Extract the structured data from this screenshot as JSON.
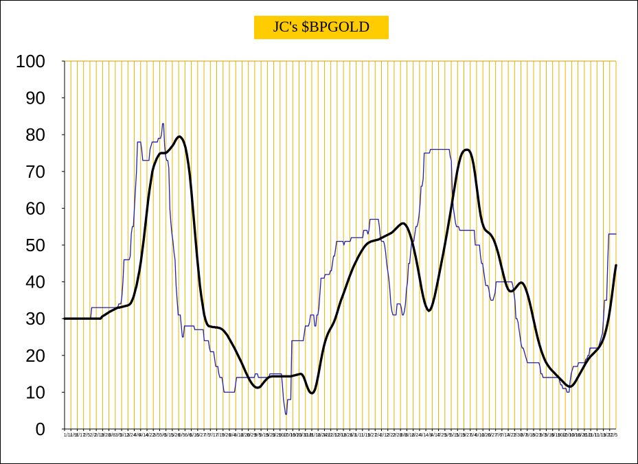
{
  "chart_data": {
    "type": "line",
    "title": "JC's $BPGOLD",
    "xlabel": "",
    "ylabel": "",
    "ylim": [
      0,
      100
    ],
    "yticks": [
      0,
      10,
      20,
      30,
      40,
      50,
      60,
      70,
      80,
      90,
      100
    ],
    "grid": "vertical",
    "legend": "none",
    "colors": {
      "plot_background": "#FFFFFF",
      "grid": "#E8B400",
      "axis": "#C8A000",
      "raw_series": "#1F1FB0",
      "smoothed_series": "#000000",
      "title_background": "#FFCC00"
    },
    "x_tick_labels": [
      "1/1/",
      "1/9/",
      "1/17",
      "2/5",
      "2/2",
      "2/19",
      "2/28",
      "3/8",
      "3/5",
      "3/13",
      "2/24",
      "4/6",
      "4/14",
      "4/22",
      "3/5",
      "5/6",
      "5/15",
      "5/26",
      "6/5",
      "6/6",
      "6/15",
      "6/27",
      "7/5",
      "7/17",
      "7/19",
      "7/26",
      "8/4",
      "8/12",
      "8/20",
      "8/29",
      "9/5",
      "9/15",
      "9/23",
      "9/29",
      "10/7",
      "10/19",
      "10/23",
      "10/31",
      "11/8",
      "11/18",
      "11/24",
      "12/1",
      "12/12",
      "12/18",
      "12/26",
      "1/3",
      "1/11",
      "1/19",
      "1/27",
      "2/4",
      "2/12",
      "2/22",
      "2/28",
      "3/8",
      "3/18",
      "2/24",
      "4/1",
      "4/9",
      "4/17",
      "4/25",
      "5/5",
      "5/11",
      "5/19",
      "5/27",
      "6/4",
      "6/12",
      "6/20",
      "6/27",
      "7/6",
      "7/14",
      "7/22",
      "7/30",
      "8/7",
      "8/15",
      "8/23",
      "9/3",
      "9/16",
      "9/19",
      "10/2",
      "10/10",
      "10/18",
      "10/26",
      "11/3",
      "11/11",
      "11/19",
      "11/27",
      "12/5"
    ],
    "series": [
      {
        "role": "raw",
        "values": [
          30,
          30,
          30,
          30,
          30,
          30,
          30,
          30,
          30,
          30,
          30,
          30,
          30,
          30,
          30,
          30,
          30,
          30,
          30,
          30,
          30,
          30,
          30,
          30,
          30,
          30,
          33,
          33,
          33,
          33,
          33,
          33,
          33,
          33,
          33,
          33,
          33,
          33,
          33,
          33,
          33,
          33,
          33,
          33,
          33,
          33,
          33,
          33,
          33,
          33,
          33,
          33,
          34,
          34,
          34,
          36,
          40,
          46,
          46,
          46,
          46,
          46,
          46,
          47,
          53,
          55,
          55,
          60,
          65,
          70,
          78,
          78,
          78,
          78,
          76,
          73,
          73,
          73,
          73,
          73,
          73,
          73,
          76,
          77,
          78,
          78,
          78,
          78,
          78,
          78,
          79,
          79,
          79,
          80,
          83,
          83,
          77,
          74,
          73,
          73,
          71,
          60,
          56,
          53,
          51,
          48,
          46,
          39,
          35,
          31,
          31,
          31,
          28,
          25,
          25,
          28,
          28,
          28,
          28,
          28,
          28,
          28,
          28,
          28,
          28,
          27,
          27,
          27,
          27,
          27,
          27,
          27,
          27,
          27,
          24,
          24,
          24,
          24,
          24,
          22,
          21,
          21,
          21,
          21,
          19,
          17,
          17,
          17,
          15,
          14,
          14,
          14,
          12,
          10,
          10,
          10,
          10,
          10,
          10,
          10,
          10,
          10,
          10,
          10,
          12,
          14,
          14,
          14,
          14,
          14,
          14,
          14,
          14,
          14,
          14,
          14,
          14,
          14,
          14,
          14,
          14,
          14,
          14,
          15,
          15,
          15,
          14,
          14,
          14,
          14,
          14,
          14,
          14,
          14,
          14,
          14,
          14,
          15,
          15,
          15,
          15,
          15,
          15,
          15,
          15,
          15,
          15,
          15,
          15,
          12,
          8,
          6,
          4,
          4,
          8,
          8,
          8,
          8,
          24,
          24,
          24,
          24,
          24,
          24,
          24,
          24,
          24,
          24,
          24,
          24,
          26,
          28,
          28,
          28,
          28,
          29,
          31,
          31,
          31,
          31,
          28,
          28,
          31,
          31,
          33,
          37,
          41,
          41,
          41,
          41,
          42,
          42,
          42,
          42,
          42,
          43,
          43,
          45,
          47,
          47,
          49,
          51,
          51,
          51,
          51,
          51,
          51,
          51,
          50,
          51,
          51,
          51,
          51,
          51,
          51,
          52,
          52,
          52,
          52,
          52,
          52,
          52,
          52,
          52,
          52,
          52,
          52,
          54,
          54,
          54,
          54,
          53,
          54,
          57,
          57,
          57,
          57,
          57,
          57,
          57,
          57,
          57,
          55,
          52,
          51,
          51,
          51,
          50,
          48,
          45,
          43,
          41,
          38,
          34,
          32,
          31,
          31,
          31,
          31,
          34,
          34,
          34,
          34,
          33,
          31,
          31,
          32,
          34,
          38,
          40,
          45,
          45,
          48,
          51,
          51,
          51,
          53,
          55,
          55,
          56,
          58,
          61,
          66,
          66,
          68,
          75,
          75,
          75,
          75,
          75,
          75,
          76,
          76,
          76,
          76,
          76,
          76,
          76,
          76,
          76,
          76,
          76,
          76,
          76,
          76,
          76,
          76,
          76,
          76,
          76,
          74,
          73,
          64,
          60,
          58,
          56,
          55,
          55,
          55,
          54,
          54,
          54,
          54,
          54,
          54,
          54,
          54,
          54,
          54,
          54,
          54,
          54,
          54,
          54,
          50,
          50,
          50,
          50,
          50,
          47,
          45,
          45,
          43,
          41,
          39,
          39,
          39,
          38,
          36,
          35,
          35,
          35,
          36,
          37,
          40,
          40,
          40,
          40,
          40,
          40,
          40,
          40,
          40,
          40,
          40,
          40,
          40,
          40,
          40,
          40,
          39,
          37,
          35,
          30,
          30,
          29,
          27,
          25,
          23,
          22,
          22,
          21,
          20,
          19,
          18,
          18,
          18,
          18,
          18,
          18,
          18,
          18,
          18,
          18,
          18,
          18,
          17,
          15,
          15,
          14,
          14,
          14,
          14,
          14,
          14,
          14,
          14,
          14,
          14,
          14,
          14,
          14,
          14,
          14,
          14,
          13,
          12,
          12,
          11,
          11,
          11,
          11,
          10,
          10,
          10,
          13,
          15,
          16,
          17,
          17,
          17,
          17,
          17,
          18,
          18,
          18,
          18,
          18,
          18,
          18,
          19,
          19,
          20,
          20,
          22,
          22,
          22,
          22,
          22,
          22,
          22,
          22,
          22,
          23,
          24,
          25,
          26,
          30,
          35,
          35,
          35,
          45,
          53,
          53,
          53,
          53,
          53,
          53,
          53,
          53
        ]
      },
      {
        "role": "smoothed",
        "values": [
          30,
          30,
          30,
          30,
          30,
          30,
          30,
          30,
          30,
          30,
          30,
          30,
          30,
          30,
          30,
          30,
          30,
          30,
          30,
          30,
          30,
          30,
          30,
          30,
          30,
          30,
          30.5,
          30.8,
          31,
          31.3,
          31.5,
          31.8,
          32,
          32.2,
          32.4,
          32.6,
          32.8,
          33,
          33,
          33.1,
          33.2,
          33.3,
          33.4,
          33.5,
          33.6,
          33.8,
          34.2,
          35,
          36,
          37.5,
          39,
          41,
          43,
          45.5,
          48.5,
          51.5,
          55,
          58.5,
          62,
          65,
          67.5,
          70,
          71.5,
          72.5,
          73.5,
          74.2,
          74.8,
          75,
          75,
          75,
          75,
          75.2,
          75.6,
          76,
          76.5,
          77,
          77.6,
          78.4,
          79,
          79.4,
          79.5,
          79.2,
          78.7,
          77.8,
          76.5,
          74.5,
          72,
          69,
          65,
          60.5,
          56,
          51.5,
          47,
          43,
          39,
          36,
          33.5,
          31,
          29.5,
          28.5,
          28,
          27.9,
          27.8,
          27.7,
          27.7,
          27.6,
          27.6,
          27.5,
          27.4,
          27.2,
          26.9,
          26.5,
          26,
          25.5,
          24.8,
          24.1,
          23.4,
          22.7,
          22,
          21.2,
          20.4,
          19.6,
          18.8,
          18,
          17.1,
          16.2,
          15.3,
          14.5,
          13.7,
          13,
          12.4,
          11.9,
          11.5,
          11.3,
          11.2,
          11.3,
          11.5,
          12,
          12.5,
          13,
          13.4,
          13.8,
          14.1,
          14.2,
          14.3,
          14.3,
          14.3,
          14.3,
          14.3,
          14.3,
          14.3,
          14.3,
          14.3,
          14.3,
          14.3,
          14.3,
          14.3,
          14.3,
          14.4,
          14.5,
          14.6,
          14.7,
          14.8,
          14.9,
          15,
          14.8,
          14.2,
          13.2,
          12,
          11,
          10.2,
          9.8,
          9.7,
          10,
          10.8,
          12.3,
          14.2,
          16.3,
          18.5,
          20.5,
          22.3,
          23.8,
          25,
          26,
          26.8,
          27.5,
          28.2,
          29,
          30,
          31.2,
          32.5,
          33.8,
          35,
          36,
          37.1,
          38.2,
          39.3,
          40.4,
          41.5,
          42.5,
          43.5,
          44.4,
          45.2,
          46,
          46.8,
          47.5,
          48.2,
          48.8,
          49.4,
          49.9,
          50.3,
          50.6,
          50.8,
          51,
          51.1,
          51.2,
          51.3,
          51.4,
          51.5,
          51.7,
          51.9,
          52.1,
          52.3,
          52.5,
          52.7,
          52.9,
          53.1,
          53.3,
          53.6,
          54,
          54.4,
          54.8,
          55.2,
          55.5,
          55.8,
          55.9,
          55.8,
          55.4,
          54.8,
          53.9,
          52.8,
          51.5,
          50,
          48.3,
          46.5,
          44.5,
          42.4,
          40.2,
          38,
          36.1,
          34.5,
          33.3,
          32.5,
          32.1,
          32.4,
          33.2,
          34.5,
          36,
          37.8,
          39.7,
          41.7,
          43.7,
          45.7,
          47.7,
          49.8,
          52,
          54.2,
          56.5,
          58.8,
          61.2,
          63.6,
          66,
          68.4,
          70.6,
          72.4,
          73.9,
          74.9,
          75.5,
          75.8,
          75.9,
          75.9,
          75.7,
          75,
          73.8,
          72,
          69.5,
          66.5,
          63.5,
          60.5,
          58,
          56.2,
          55,
          54.2,
          53.8,
          53.5,
          53.2,
          52.8,
          52.2,
          51.5,
          50.5,
          49.3,
          48,
          46.5,
          44.8,
          43.2,
          41.6,
          40.1,
          38.9,
          38,
          37.5,
          37.4,
          37.5,
          37.8,
          38.2,
          38.7,
          39.2,
          39.6,
          39.8,
          39.7,
          39.2,
          38.4,
          37.3,
          36,
          34.5,
          32.8,
          31,
          29.2,
          27.4,
          25.7,
          24.1,
          22.7,
          21.4,
          20.3,
          19.3,
          18.4,
          17.7,
          17.1,
          16.6,
          16.1,
          15.7,
          15.3,
          14.9,
          14.5,
          14.1,
          13.7,
          13.3,
          12.9,
          12.5,
          12.1,
          11.8,
          11.6,
          11.5,
          11.6,
          11.9,
          12.4,
          13,
          13.7,
          14.4,
          15.1,
          15.8,
          16.5,
          17.2,
          17.9,
          18.5,
          19.1,
          19.6,
          20,
          20.4,
          20.8,
          21.2,
          21.6,
          22.1,
          22.7,
          23.4,
          24.3,
          25.4,
          26.8,
          28.5,
          30.5,
          33,
          35.8,
          38.8,
          42,
          44.5
        ]
      }
    ]
  }
}
